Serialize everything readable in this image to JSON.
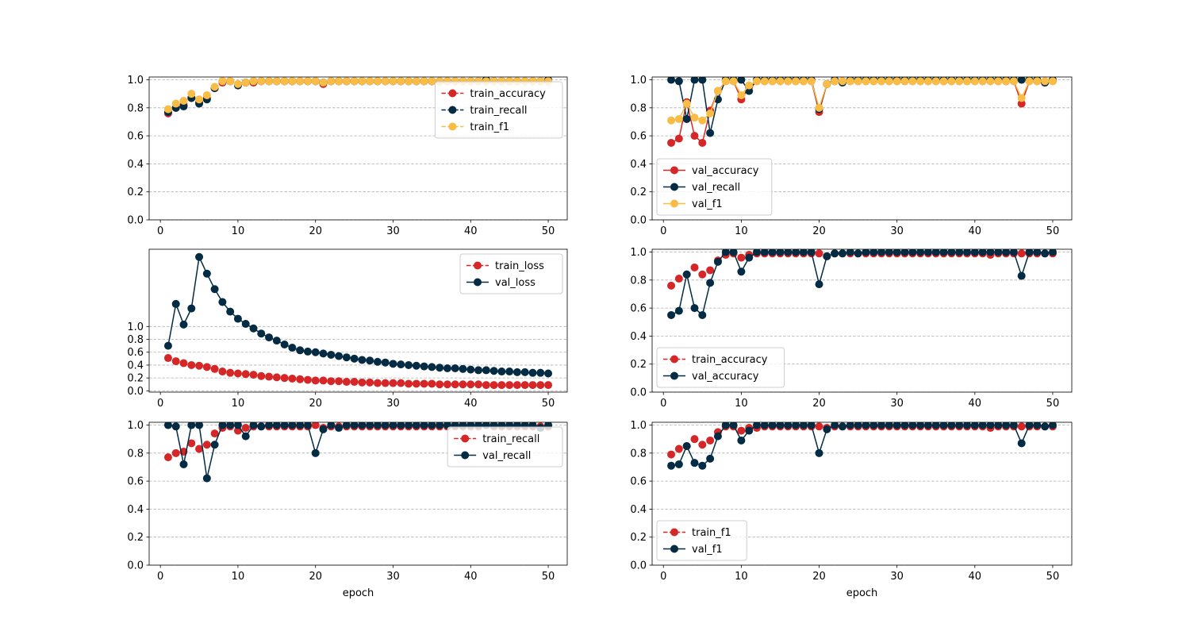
{
  "figure": {
    "background": "#ffffff"
  },
  "colors": {
    "red": "#d62728",
    "navy": "#032b43",
    "yellow": "#f9bc45",
    "grid": "#b0b0b0"
  },
  "chart_data": [
    {
      "id": "p1",
      "type": "line",
      "ylim": [
        0,
        1.02
      ],
      "xlim": [
        -1.45,
        52.45
      ],
      "xticks": [
        0,
        10,
        20,
        30,
        40,
        50
      ],
      "yticks": [
        0.0,
        0.2,
        0.4,
        0.6,
        0.8,
        1.0
      ],
      "ytick_labels": [
        "0.0",
        "0.2",
        "0.4",
        "0.6",
        "0.8",
        "1.0"
      ],
      "xlabel": "",
      "legend_loc": "upper-right",
      "grid": "y-dashed",
      "series": [
        {
          "name": "train_accuracy",
          "color": "#d62728",
          "dashed": true,
          "values": [
            0.76,
            0.8,
            0.82,
            0.87,
            0.84,
            0.87,
            0.94,
            0.98,
            0.99,
            0.96,
            0.98,
            0.98,
            0.99,
            0.99,
            0.99,
            0.99,
            0.99,
            0.99,
            0.99,
            0.99,
            0.97,
            0.99,
            0.99,
            0.99,
            0.99,
            0.99,
            0.99,
            0.99,
            0.99,
            0.99,
            0.99,
            0.99,
            0.99,
            0.99,
            0.99,
            0.99,
            0.99,
            0.99,
            0.99,
            0.99,
            0.99,
            0.99,
            0.99,
            0.99,
            0.99,
            0.99,
            0.99,
            0.99,
            0.99,
            0.99
          ]
        },
        {
          "name": "train_recall",
          "color": "#032b43",
          "dashed": true,
          "values": [
            0.77,
            0.8,
            0.81,
            0.87,
            0.83,
            0.86,
            0.94,
            0.99,
            0.99,
            0.96,
            0.98,
            0.99,
            0.99,
            0.99,
            0.99,
            0.99,
            0.99,
            0.99,
            0.99,
            0.99,
            0.98,
            0.99,
            0.99,
            0.99,
            0.99,
            0.99,
            0.99,
            0.99,
            0.99,
            0.99,
            0.99,
            0.99,
            0.99,
            0.99,
            0.99,
            0.99,
            0.99,
            0.99,
            0.99,
            0.99,
            0.99,
            1.0,
            0.99,
            0.99,
            0.99,
            0.99,
            0.99,
            0.99,
            0.99,
            1.0
          ]
        },
        {
          "name": "train_f1",
          "color": "#f9bc45",
          "dashed": true,
          "values": [
            0.79,
            0.83,
            0.85,
            0.9,
            0.86,
            0.89,
            0.95,
            0.99,
            0.99,
            0.97,
            0.98,
            0.99,
            0.99,
            0.99,
            0.99,
            0.99,
            0.99,
            0.99,
            0.99,
            0.99,
            0.98,
            0.99,
            0.99,
            0.99,
            0.99,
            0.99,
            0.99,
            0.99,
            0.99,
            0.99,
            0.99,
            0.99,
            0.99,
            0.99,
            0.99,
            0.99,
            0.99,
            0.99,
            0.99,
            0.99,
            0.99,
            0.99,
            0.99,
            0.99,
            0.99,
            0.99,
            0.99,
            0.99,
            0.99,
            0.99
          ]
        }
      ]
    },
    {
      "id": "p2",
      "type": "line",
      "ylim": [
        0,
        1.02
      ],
      "xlim": [
        -1.45,
        52.45
      ],
      "xticks": [
        0,
        10,
        20,
        30,
        40,
        50
      ],
      "yticks": [
        0.0,
        0.2,
        0.4,
        0.6,
        0.8,
        1.0
      ],
      "ytick_labels": [
        "0.0",
        "0.2",
        "0.4",
        "0.6",
        "0.8",
        "1.0"
      ],
      "xlabel": "",
      "legend_loc": "lower-left",
      "grid": "y-dashed",
      "series": [
        {
          "name": "val_accuracy",
          "color": "#d62728",
          "dashed": false,
          "values": [
            0.55,
            0.58,
            0.84,
            0.6,
            0.55,
            0.78,
            0.92,
            0.99,
            0.99,
            0.86,
            0.95,
            0.99,
            0.99,
            0.99,
            0.99,
            0.99,
            0.99,
            0.99,
            0.99,
            0.77,
            0.97,
            0.99,
            0.99,
            0.99,
            0.99,
            0.99,
            0.99,
            0.99,
            0.99,
            0.99,
            0.99,
            0.99,
            0.99,
            0.99,
            0.99,
            0.99,
            0.99,
            0.99,
            0.99,
            0.99,
            0.99,
            0.99,
            0.99,
            0.99,
            0.99,
            0.83,
            0.99,
            0.99,
            0.98,
            0.99
          ]
        },
        {
          "name": "val_recall",
          "color": "#032b43",
          "dashed": false,
          "values": [
            1.0,
            0.99,
            0.72,
            1.0,
            1.0,
            0.62,
            0.86,
            1.0,
            1.0,
            1.0,
            0.92,
            1.0,
            1.0,
            1.0,
            1.0,
            1.0,
            1.0,
            1.0,
            1.0,
            0.79,
            0.97,
            1.0,
            0.98,
            1.0,
            1.0,
            1.0,
            1.0,
            1.0,
            1.0,
            1.0,
            1.0,
            1.0,
            1.0,
            1.0,
            1.0,
            1.0,
            1.0,
            1.0,
            1.0,
            1.0,
            1.0,
            1.0,
            1.0,
            1.0,
            1.0,
            1.0,
            1.0,
            1.0,
            0.98,
            1.0
          ]
        },
        {
          "name": "val_f1",
          "color": "#f9bc45",
          "dashed": false,
          "values": [
            0.71,
            0.72,
            0.83,
            0.73,
            0.71,
            0.76,
            0.92,
            0.99,
            0.99,
            0.89,
            0.96,
            0.99,
            0.99,
            0.99,
            0.99,
            0.99,
            0.99,
            0.99,
            0.99,
            0.8,
            0.97,
            0.99,
            0.99,
            0.99,
            0.99,
            0.99,
            0.99,
            0.99,
            0.99,
            0.99,
            0.99,
            0.99,
            0.99,
            0.99,
            0.99,
            0.99,
            0.99,
            0.99,
            0.99,
            0.99,
            0.99,
            0.99,
            0.99,
            0.99,
            0.99,
            0.87,
            0.99,
            0.99,
            0.99,
            0.99
          ]
        }
      ]
    },
    {
      "id": "p3",
      "type": "line",
      "ylim": [
        -0.02,
        2.2
      ],
      "xlim": [
        -1.45,
        52.45
      ],
      "xticks": [
        0,
        10,
        20,
        30,
        40,
        50
      ],
      "yticks": [
        0.0,
        0.2,
        0.4,
        0.6,
        0.8,
        1.0
      ],
      "ytick_labels": [
        "0.0",
        "0.2",
        "0.4",
        "0.6",
        "0.8",
        "1.0"
      ],
      "xlabel": "",
      "legend_loc": "upper-right",
      "grid": "y-dashed",
      "series": [
        {
          "name": "train_loss",
          "color": "#d62728",
          "dashed": true,
          "values": [
            0.51,
            0.46,
            0.43,
            0.4,
            0.39,
            0.37,
            0.34,
            0.3,
            0.28,
            0.27,
            0.26,
            0.25,
            0.23,
            0.22,
            0.21,
            0.2,
            0.19,
            0.18,
            0.17,
            0.16,
            0.16,
            0.15,
            0.15,
            0.14,
            0.14,
            0.13,
            0.13,
            0.12,
            0.12,
            0.12,
            0.12,
            0.11,
            0.11,
            0.11,
            0.11,
            0.1,
            0.1,
            0.1,
            0.1,
            0.1,
            0.1,
            0.09,
            0.09,
            0.09,
            0.09,
            0.09,
            0.09,
            0.09,
            0.09,
            0.09
          ]
        },
        {
          "name": "val_loss",
          "color": "#032b43",
          "dashed": false,
          "values": [
            0.7,
            1.35,
            1.03,
            1.28,
            2.08,
            1.82,
            1.58,
            1.38,
            1.23,
            1.12,
            1.04,
            0.97,
            0.89,
            0.83,
            0.78,
            0.72,
            0.67,
            0.63,
            0.61,
            0.6,
            0.58,
            0.56,
            0.54,
            0.52,
            0.5,
            0.48,
            0.47,
            0.45,
            0.44,
            0.42,
            0.41,
            0.4,
            0.39,
            0.38,
            0.37,
            0.36,
            0.35,
            0.35,
            0.34,
            0.33,
            0.32,
            0.32,
            0.31,
            0.3,
            0.3,
            0.29,
            0.29,
            0.28,
            0.28,
            0.27
          ]
        }
      ]
    },
    {
      "id": "p4",
      "type": "line",
      "ylim": [
        0,
        1.02
      ],
      "xlim": [
        -1.45,
        52.45
      ],
      "xticks": [
        0,
        10,
        20,
        30,
        40,
        50
      ],
      "yticks": [
        0.0,
        0.2,
        0.4,
        0.6,
        0.8,
        1.0
      ],
      "ytick_labels": [
        "0.0",
        "0.2",
        "0.4",
        "0.6",
        "0.8",
        "1.0"
      ],
      "xlabel": "",
      "legend_loc": "lower-left",
      "grid": "y-dashed",
      "series": [
        {
          "name": "train_accuracy",
          "color": "#d62728",
          "dashed": true,
          "values": [
            0.76,
            0.81,
            0.84,
            0.89,
            0.84,
            0.87,
            0.94,
            0.98,
            0.99,
            0.96,
            0.98,
            0.99,
            0.99,
            0.99,
            0.99,
            0.99,
            0.99,
            0.99,
            0.99,
            0.99,
            0.97,
            0.99,
            0.99,
            0.99,
            0.99,
            0.99,
            0.99,
            0.99,
            0.99,
            0.99,
            0.99,
            0.99,
            0.99,
            0.99,
            0.99,
            0.99,
            0.99,
            0.99,
            0.99,
            0.99,
            0.99,
            0.98,
            0.99,
            0.99,
            0.99,
            0.99,
            0.99,
            0.99,
            0.99,
            0.99
          ]
        },
        {
          "name": "val_accuracy",
          "color": "#032b43",
          "dashed": false,
          "values": [
            0.55,
            0.58,
            0.84,
            0.6,
            0.55,
            0.78,
            0.93,
            1.0,
            1.0,
            0.86,
            0.96,
            1.0,
            1.0,
            1.0,
            1.0,
            1.0,
            1.0,
            1.0,
            1.0,
            0.77,
            0.97,
            0.99,
            0.99,
            1.0,
            0.99,
            1.0,
            1.0,
            1.0,
            1.0,
            1.0,
            1.0,
            1.0,
            1.0,
            1.0,
            1.0,
            1.0,
            1.0,
            1.0,
            1.0,
            1.0,
            1.0,
            1.0,
            1.0,
            1.0,
            1.0,
            0.83,
            1.0,
            1.0,
            0.99,
            1.0
          ]
        }
      ]
    },
    {
      "id": "p5",
      "type": "line",
      "ylim": [
        0,
        1.02
      ],
      "xlim": [
        -1.45,
        52.45
      ],
      "xticks": [
        0,
        10,
        20,
        30,
        40,
        50
      ],
      "yticks": [
        0.0,
        0.2,
        0.4,
        0.6,
        0.8,
        1.0
      ],
      "ytick_labels": [
        "0.0",
        "0.2",
        "0.4",
        "0.6",
        "0.8",
        "1.0"
      ],
      "xlabel": "epoch",
      "legend_loc": "upper-right",
      "grid": "y-dashed",
      "series": [
        {
          "name": "train_recall",
          "color": "#d62728",
          "dashed": true,
          "values": [
            0.77,
            0.8,
            0.81,
            0.87,
            0.83,
            0.86,
            0.94,
            0.98,
            0.99,
            0.96,
            0.98,
            0.99,
            0.99,
            0.99,
            0.99,
            0.99,
            0.99,
            0.99,
            0.99,
            1.0,
            0.98,
            0.99,
            0.99,
            0.99,
            0.99,
            0.99,
            0.99,
            0.99,
            0.99,
            0.99,
            0.99,
            0.99,
            0.99,
            0.99,
            0.99,
            0.99,
            0.99,
            0.99,
            0.99,
            0.99,
            0.99,
            1.0,
            0.99,
            0.99,
            0.99,
            0.99,
            0.99,
            0.99,
            0.99,
            0.99
          ]
        },
        {
          "name": "val_recall",
          "color": "#032b43",
          "dashed": false,
          "values": [
            1.0,
            0.99,
            0.72,
            1.0,
            1.0,
            0.62,
            0.86,
            1.0,
            1.0,
            1.0,
            0.92,
            1.0,
            0.99,
            1.0,
            1.0,
            1.0,
            1.0,
            1.0,
            1.0,
            0.8,
            0.97,
            1.0,
            0.98,
            1.0,
            1.0,
            1.0,
            1.0,
            1.0,
            1.0,
            1.0,
            1.0,
            1.0,
            1.0,
            1.0,
            1.0,
            1.0,
            1.0,
            1.0,
            1.0,
            1.0,
            1.0,
            1.0,
            1.0,
            1.0,
            1.0,
            1.0,
            1.0,
            1.0,
            0.98,
            1.0
          ]
        }
      ]
    },
    {
      "id": "p6",
      "type": "line",
      "ylim": [
        0,
        1.02
      ],
      "xlim": [
        -1.45,
        52.45
      ],
      "xticks": [
        0,
        10,
        20,
        30,
        40,
        50
      ],
      "yticks": [
        0.0,
        0.2,
        0.4,
        0.6,
        0.8,
        1.0
      ],
      "ytick_labels": [
        "0.0",
        "0.2",
        "0.4",
        "0.6",
        "0.8",
        "1.0"
      ],
      "xlabel": "epoch",
      "legend_loc": "lower-left",
      "grid": "y-dashed",
      "series": [
        {
          "name": "train_f1",
          "color": "#d62728",
          "dashed": true,
          "values": [
            0.79,
            0.83,
            0.85,
            0.9,
            0.86,
            0.89,
            0.95,
            0.99,
            0.99,
            0.96,
            0.98,
            0.98,
            0.99,
            0.99,
            0.99,
            0.99,
            0.99,
            0.99,
            0.99,
            0.99,
            0.98,
            0.99,
            0.99,
            0.99,
            0.99,
            0.99,
            0.99,
            0.99,
            0.99,
            0.99,
            0.99,
            0.99,
            0.99,
            0.99,
            0.99,
            0.99,
            0.99,
            0.99,
            0.99,
            0.99,
            0.99,
            0.98,
            0.99,
            0.99,
            0.99,
            0.99,
            0.99,
            0.99,
            0.99,
            0.99
          ]
        },
        {
          "name": "val_f1",
          "color": "#032b43",
          "dashed": false,
          "values": [
            0.71,
            0.72,
            0.85,
            0.73,
            0.71,
            0.76,
            0.92,
            1.0,
            1.0,
            0.89,
            0.96,
            1.0,
            1.0,
            1.0,
            1.0,
            1.0,
            1.0,
            1.0,
            1.0,
            0.8,
            0.97,
            1.0,
            0.99,
            1.0,
            1.0,
            1.0,
            1.0,
            1.0,
            1.0,
            1.0,
            1.0,
            1.0,
            1.0,
            1.0,
            1.0,
            1.0,
            1.0,
            1.0,
            1.0,
            1.0,
            1.0,
            1.0,
            1.0,
            1.0,
            1.0,
            0.87,
            1.0,
            1.0,
            0.99,
            1.0
          ]
        }
      ]
    }
  ]
}
